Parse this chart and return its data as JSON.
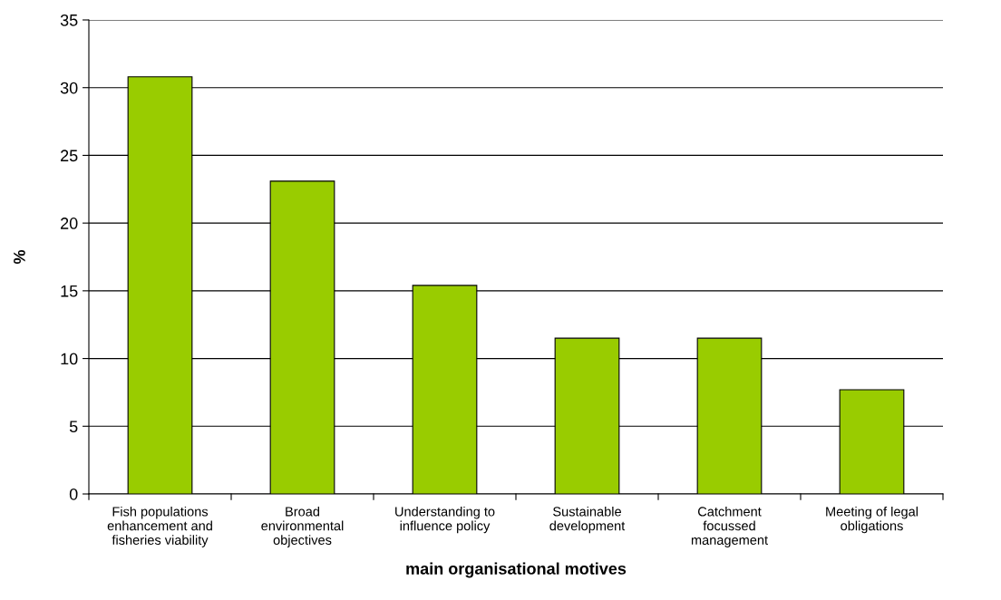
{
  "chart_data": {
    "type": "bar",
    "categories": [
      "Fish populations\nenhancement and\nfisheries viability",
      "Broad\nenvironmental\nobjectives",
      "Understanding to\ninfluence policy",
      "Sustainable\ndevelopment",
      "Catchment\nfocussed\nmanagement",
      "Meeting of legal\nobligations"
    ],
    "values": [
      30.8,
      23.1,
      15.4,
      11.5,
      11.5,
      7.7
    ],
    "color": "#99cc00",
    "xlabel": "main organisational motives",
    "ylabel": "%",
    "ylim": [
      0,
      35
    ],
    "yticks": [
      0,
      5,
      10,
      15,
      20,
      25,
      30,
      35
    ],
    "grid": "y"
  }
}
